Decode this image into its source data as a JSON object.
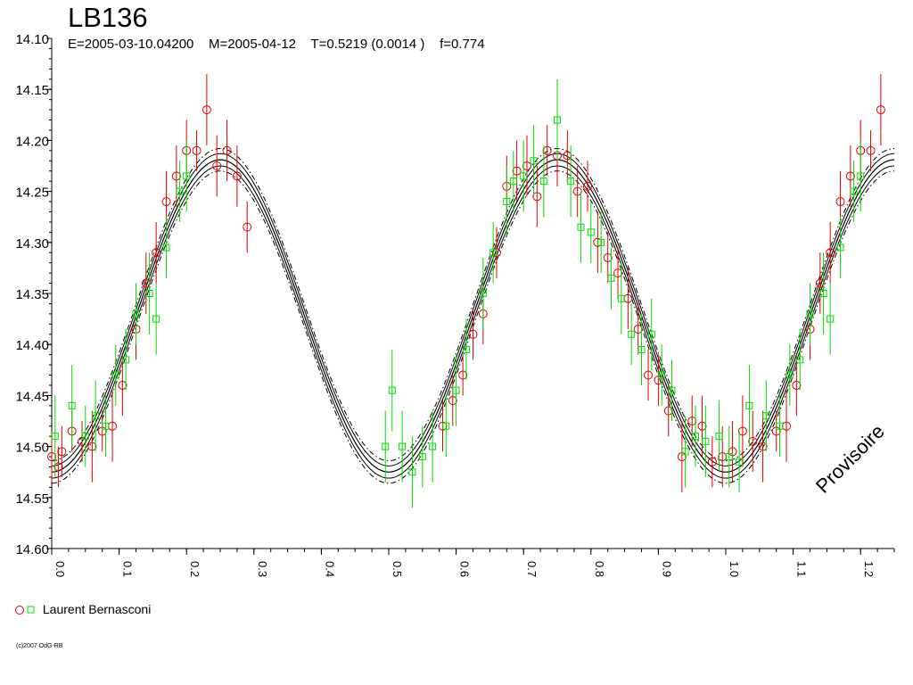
{
  "title": "LB136",
  "subtitle": "E=2005-03-10.04200    M=2005-04-12    T=0.5219 (0.0014 )    f=0.774",
  "watermark": "Provisoire",
  "copyright": "(c)2007 OdG-RB",
  "legend": {
    "label": "Laurent Bernasconi",
    "marker_colors": [
      "#e00000",
      "#00dd00"
    ]
  },
  "chart_data": {
    "type": "scatter",
    "xlim": [
      0.0,
      1.25
    ],
    "ylim": [
      14.1,
      14.6
    ],
    "y_inverted": true,
    "x_ticks": [
      "0.0",
      "0.1",
      "0.2",
      "0.3",
      "0.4",
      "0.5",
      "0.6",
      "0.7",
      "0.8",
      "0.9",
      "1.0",
      "1.1",
      "1.2"
    ],
    "y_ticks": [
      "14.10",
      "14.15",
      "14.20",
      "14.25",
      "14.30",
      "14.35",
      "14.40",
      "14.45",
      "14.50",
      "14.55",
      "14.60"
    ],
    "fit": {
      "mean": 14.372,
      "amplitude": 0.153,
      "max_phase": 0.25,
      "period_phase": 0.5,
      "band_inner": 0.006,
      "band_outer": 0.011
    },
    "series": [
      {
        "marker": "circle",
        "color": "#e00000",
        "points": [
          [
            0.0,
            14.51,
            0.025
          ],
          [
            0.01,
            14.52,
            0.02
          ],
          [
            0.015,
            14.505,
            0.025
          ],
          [
            0.03,
            14.485,
            0.02
          ],
          [
            0.045,
            14.495,
            0.02
          ],
          [
            0.06,
            14.5,
            0.035
          ],
          [
            0.075,
            14.485,
            0.02
          ],
          [
            0.09,
            14.48,
            0.035
          ],
          [
            0.105,
            14.44,
            0.03
          ],
          [
            0.125,
            14.385,
            0.03
          ],
          [
            0.14,
            14.34,
            0.03
          ],
          [
            0.155,
            14.31,
            0.03
          ],
          [
            0.17,
            14.26,
            0.03
          ],
          [
            0.185,
            14.235,
            0.03
          ],
          [
            0.2,
            14.21,
            0.03
          ],
          [
            0.215,
            14.21,
            0.02
          ],
          [
            0.23,
            14.17,
            0.035
          ],
          [
            0.245,
            14.225,
            0.03
          ],
          [
            0.26,
            14.21,
            0.03
          ],
          [
            0.275,
            14.235,
            0.03
          ],
          [
            0.29,
            14.285,
            0.025
          ],
          [
            0.58,
            14.48,
            0.025
          ],
          [
            0.595,
            14.455,
            0.025
          ],
          [
            0.61,
            14.43,
            0.02
          ],
          [
            0.625,
            14.39,
            0.025
          ],
          [
            0.64,
            14.37,
            0.03
          ],
          [
            0.66,
            14.31,
            0.025
          ],
          [
            0.675,
            14.245,
            0.03
          ],
          [
            0.69,
            14.23,
            0.03
          ],
          [
            0.705,
            14.225,
            0.03
          ],
          [
            0.72,
            14.255,
            0.03
          ],
          [
            0.735,
            14.21,
            0.025
          ],
          [
            0.75,
            14.215,
            0.03
          ],
          [
            0.765,
            14.215,
            0.025
          ],
          [
            0.78,
            14.25,
            0.025
          ],
          [
            0.795,
            14.245,
            0.025
          ],
          [
            0.81,
            14.3,
            0.03
          ],
          [
            0.825,
            14.315,
            0.025
          ],
          [
            0.84,
            14.33,
            0.025
          ],
          [
            0.855,
            14.355,
            0.03
          ],
          [
            0.87,
            14.385,
            0.025
          ],
          [
            0.885,
            14.43,
            0.025
          ],
          [
            0.9,
            14.435,
            0.025
          ],
          [
            0.915,
            14.465,
            0.025
          ],
          [
            0.935,
            14.51,
            0.035
          ],
          [
            0.95,
            14.475,
            0.025
          ],
          [
            0.965,
            14.48,
            0.03
          ],
          [
            0.98,
            14.515,
            0.025
          ],
          [
            0.995,
            14.51,
            0.03
          ],
          [
            1.01,
            14.505,
            0.03
          ],
          [
            1.025,
            14.485,
            0.035
          ],
          [
            1.04,
            14.495,
            0.03
          ],
          [
            1.055,
            14.5,
            0.035
          ],
          [
            1.075,
            14.485,
            0.02
          ],
          [
            1.09,
            14.48,
            0.035
          ],
          [
            1.105,
            14.44,
            0.03
          ],
          [
            1.125,
            14.385,
            0.03
          ],
          [
            1.14,
            14.34,
            0.03
          ],
          [
            1.155,
            14.31,
            0.03
          ],
          [
            1.17,
            14.26,
            0.03
          ],
          [
            1.185,
            14.235,
            0.03
          ],
          [
            1.2,
            14.21,
            0.03
          ],
          [
            1.215,
            14.21,
            0.02
          ],
          [
            1.23,
            14.17,
            0.035
          ]
        ]
      },
      {
        "marker": "square",
        "color": "#00dd00",
        "points": [
          [
            0.005,
            14.49,
            0.04
          ],
          [
            0.03,
            14.46,
            0.04
          ],
          [
            0.05,
            14.49,
            0.03
          ],
          [
            0.065,
            14.47,
            0.035
          ],
          [
            0.08,
            14.48,
            0.03
          ],
          [
            0.095,
            14.43,
            0.03
          ],
          [
            0.11,
            14.415,
            0.03
          ],
          [
            0.125,
            14.37,
            0.03
          ],
          [
            0.145,
            14.35,
            0.04
          ],
          [
            0.155,
            14.375,
            0.035
          ],
          [
            0.17,
            14.305,
            0.03
          ],
          [
            0.19,
            14.25,
            0.03
          ],
          [
            0.2,
            14.235,
            0.035
          ],
          [
            0.495,
            14.5,
            0.035
          ],
          [
            0.505,
            14.445,
            0.04
          ],
          [
            0.52,
            14.5,
            0.035
          ],
          [
            0.535,
            14.525,
            0.035
          ],
          [
            0.55,
            14.51,
            0.03
          ],
          [
            0.565,
            14.5,
            0.035
          ],
          [
            0.585,
            14.48,
            0.03
          ],
          [
            0.6,
            14.445,
            0.035
          ],
          [
            0.615,
            14.405,
            0.03
          ],
          [
            0.64,
            14.35,
            0.035
          ],
          [
            0.655,
            14.31,
            0.03
          ],
          [
            0.675,
            14.26,
            0.035
          ],
          [
            0.685,
            14.24,
            0.03
          ],
          [
            0.7,
            14.235,
            0.035
          ],
          [
            0.715,
            14.22,
            0.035
          ],
          [
            0.73,
            14.24,
            0.035
          ],
          [
            0.75,
            14.18,
            0.04
          ],
          [
            0.77,
            14.24,
            0.035
          ],
          [
            0.785,
            14.285,
            0.035
          ],
          [
            0.8,
            14.29,
            0.03
          ],
          [
            0.815,
            14.3,
            0.03
          ],
          [
            0.83,
            14.335,
            0.03
          ],
          [
            0.845,
            14.355,
            0.035
          ],
          [
            0.86,
            14.39,
            0.03
          ],
          [
            0.875,
            14.405,
            0.035
          ],
          [
            0.89,
            14.39,
            0.035
          ],
          [
            0.905,
            14.43,
            0.03
          ],
          [
            0.92,
            14.445,
            0.03
          ],
          [
            0.94,
            14.505,
            0.035
          ],
          [
            0.955,
            14.49,
            0.03
          ],
          [
            0.97,
            14.495,
            0.035
          ],
          [
            0.99,
            14.49,
            0.035
          ],
          [
            1.005,
            14.51,
            0.03
          ],
          [
            1.02,
            14.515,
            0.03
          ],
          [
            1.035,
            14.46,
            0.04
          ],
          [
            1.06,
            14.47,
            0.035
          ],
          [
            1.08,
            14.48,
            0.03
          ],
          [
            1.095,
            14.43,
            0.03
          ],
          [
            1.11,
            14.415,
            0.03
          ],
          [
            1.125,
            14.37,
            0.03
          ],
          [
            1.145,
            14.35,
            0.04
          ],
          [
            1.155,
            14.375,
            0.035
          ],
          [
            1.17,
            14.305,
            0.03
          ],
          [
            1.19,
            14.25,
            0.03
          ],
          [
            1.2,
            14.235,
            0.035
          ]
        ]
      }
    ]
  }
}
